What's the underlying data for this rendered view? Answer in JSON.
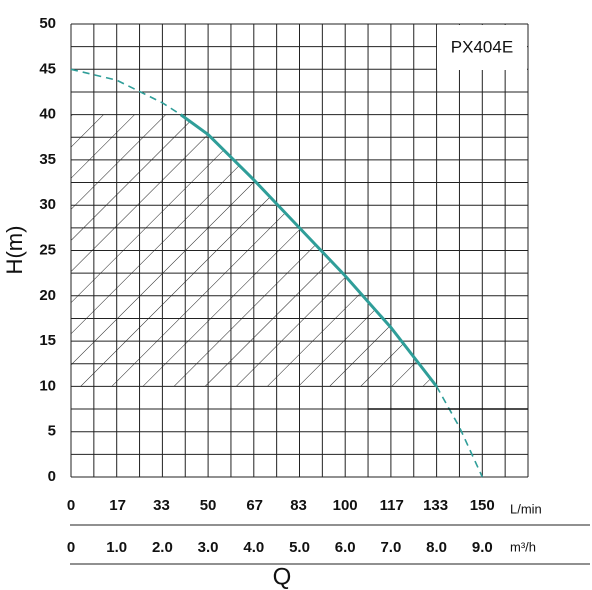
{
  "chart_data": {
    "type": "line",
    "model": "PX404E",
    "y_label": "H(m)",
    "x_label": "Q",
    "x_unit": "m³/h",
    "x2_unit": "L/min",
    "xlim": [
      0,
      10
    ],
    "xticks": [
      0,
      {
        "value": 1,
        "label": "1.0"
      },
      {
        "value": 2,
        "label": "2.0"
      },
      {
        "value": 3,
        "label": "3.0"
      },
      {
        "value": 4,
        "label": "4.0"
      },
      {
        "value": 5,
        "label": "5.0"
      },
      {
        "value": 6,
        "label": "6.0"
      },
      {
        "value": 7,
        "label": "7.0"
      },
      {
        "value": 8,
        "label": "8.0"
      },
      {
        "value": 9,
        "label": "9.0"
      }
    ],
    "x2lim": [
      0,
      166.7
    ],
    "x2ticks": [
      0,
      17,
      33,
      50,
      67,
      83,
      100,
      117,
      133,
      150
    ],
    "ylim": [
      0,
      50
    ],
    "yticks": [
      0,
      5,
      10,
      15,
      20,
      25,
      30,
      35,
      40,
      45,
      50
    ],
    "grid": true,
    "hatch_range": [
      10,
      40
    ],
    "series": [
      {
        "color": "#2f9e99",
        "line_style": "dashed",
        "x": [
          0,
          1,
          2,
          2.4
        ],
        "values": [
          45,
          43.8,
          41.3,
          40
        ]
      },
      {
        "color": "#2f9e99",
        "line_style": "solid",
        "x": [
          2.4,
          3,
          4,
          5,
          6,
          7,
          8
        ],
        "values": [
          40,
          37.8,
          32.8,
          27.5,
          22.2,
          16.5,
          10
        ]
      },
      {
        "color": "#2f9e99",
        "line_style": "dashed",
        "x": [
          8,
          8.5,
          9
        ],
        "values": [
          10,
          5.5,
          0
        ]
      }
    ]
  }
}
